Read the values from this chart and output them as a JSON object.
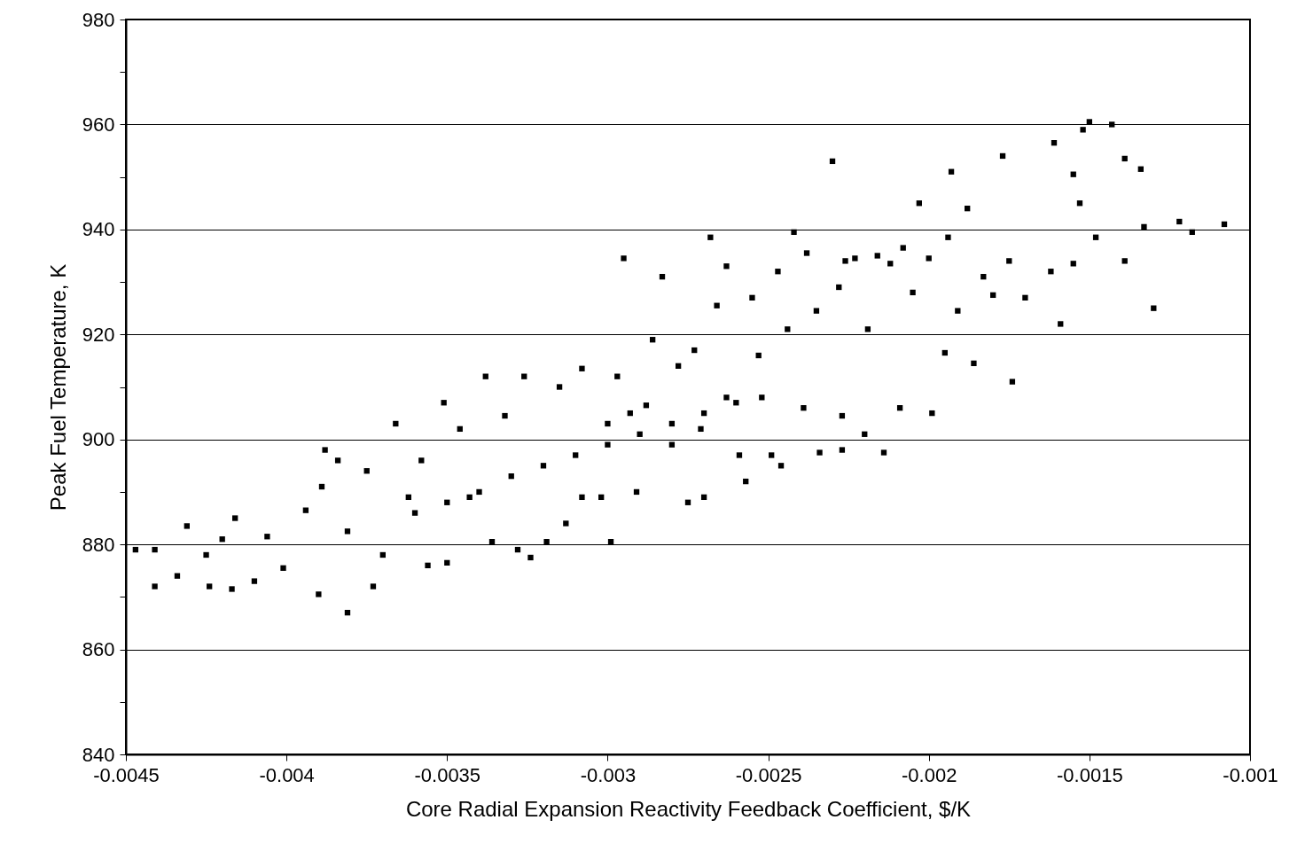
{
  "chart_data": {
    "type": "scatter",
    "xlabel": "Core Radial Expansion Reactivity Feedback Coefficient, $/K",
    "ylabel": "Peak Fuel Temperature, K",
    "marker": "square",
    "grid": "y",
    "xlim": [
      -0.0045,
      -0.001
    ],
    "xticks": [
      -0.0045,
      -0.004,
      -0.0035,
      -0.003,
      -0.0025,
      -0.002,
      -0.0015,
      -0.001
    ],
    "ylim": [
      840,
      980
    ],
    "yticks": [
      840,
      {
        "value": 850,
        "label": null
      },
      860,
      {
        "value": 870,
        "label": null
      },
      880,
      {
        "value": 890,
        "label": null
      },
      900,
      {
        "value": 910,
        "label": null
      },
      920,
      {
        "value": 930,
        "label": null
      },
      940,
      {
        "value": 950,
        "label": null
      },
      960,
      {
        "value": 970,
        "label": null
      },
      980
    ],
    "series": [
      {
        "color": "#000000",
        "x": [
          -0.00447,
          -0.00441,
          -0.00441,
          -0.00434,
          -0.00431,
          -0.00425,
          -0.00424,
          -0.0042,
          -0.00417,
          -0.00416,
          -0.0041,
          -0.00406,
          -0.00401,
          -0.00394,
          -0.0039,
          -0.00389,
          -0.00388,
          -0.00384,
          -0.00381,
          -0.00381,
          -0.00375,
          -0.00373,
          -0.0037,
          -0.00366,
          -0.00362,
          -0.00358,
          -0.00356,
          -0.00351,
          -0.0035,
          -0.00346,
          -0.00343,
          -0.00338,
          -0.00336,
          -0.00332,
          -0.00328,
          -0.00326,
          -0.00324,
          -0.00319,
          -0.00315,
          -0.00313,
          -0.00308,
          -0.00308,
          -0.00302,
          -0.00299,
          -0.003,
          -0.00297,
          -0.00295,
          -0.00293,
          -0.00291,
          -0.00288,
          -0.00286,
          -0.00283,
          -0.0028,
          -0.00278,
          -0.00275,
          -0.00273,
          -0.00271,
          -0.0027,
          -0.00268,
          -0.00266,
          -0.00263,
          -0.00263,
          -0.00259,
          -0.00257,
          -0.00255,
          -0.00253,
          -0.00252,
          -0.00249,
          -0.00247,
          -0.00246,
          -0.00244,
          -0.00242,
          -0.00239,
          -0.00238,
          -0.00235,
          -0.00234,
          -0.0023,
          -0.00228,
          -0.00227,
          -0.00227,
          -0.00226,
          -0.00223,
          -0.0022,
          -0.00219,
          -0.00216,
          -0.00214,
          -0.00212,
          -0.00209,
          -0.00208,
          -0.00205,
          -0.00203,
          -0.002,
          -0.00199,
          -0.00195,
          -0.00193,
          -0.00194,
          -0.00191,
          -0.00188,
          -0.00186,
          -0.00183,
          -0.0018,
          -0.00177,
          -0.00175,
          -0.00174,
          -0.0017,
          -0.00162,
          -0.00161,
          -0.00159,
          -0.00155,
          -0.00155,
          -0.00153,
          -0.00152,
          -0.0015,
          -0.00148,
          -0.00143,
          -0.00139,
          -0.00139,
          -0.00134,
          -0.00133,
          -0.0013,
          -0.00122,
          -0.00118,
          -0.00108,
          -0.0034,
          -0.0033,
          -0.0032,
          -0.0031,
          -0.003,
          -0.0029,
          -0.0028,
          -0.0027,
          -0.0026,
          -0.0036,
          -0.0035
        ],
        "values": [
          879,
          879,
          872,
          874,
          883.5,
          878,
          872,
          881,
          871.5,
          885,
          873,
          881.5,
          875.5,
          886.5,
          870.5,
          891,
          898,
          896,
          867,
          882.5,
          894,
          872,
          878,
          903,
          889,
          896,
          876,
          907,
          876.5,
          902,
          889,
          912,
          880.5,
          904.5,
          879,
          912,
          877.5,
          880.5,
          910,
          884,
          889,
          913.5,
          889,
          880.5,
          903,
          912,
          934.5,
          905,
          890,
          906.5,
          919,
          931,
          899,
          914,
          888,
          917,
          902,
          889,
          938.5,
          925.5,
          933,
          908,
          897,
          892,
          927,
          916,
          908,
          897,
          932,
          895,
          921,
          939.5,
          906,
          935.5,
          924.5,
          897.5,
          953,
          929,
          904.5,
          898,
          934,
          934.5,
          901,
          921,
          935,
          897.5,
          933.5,
          906,
          936.5,
          928,
          945,
          934.5,
          905,
          916.5,
          951,
          938.5,
          924.5,
          944,
          914.5,
          931,
          927.5,
          954,
          934,
          911,
          927,
          932,
          956.5,
          922,
          950.5,
          933.5,
          945,
          959,
          960.5,
          938.5,
          960,
          953.5,
          934,
          951.5,
          940.5,
          925,
          941.5,
          939.5,
          941,
          890,
          893,
          895,
          897,
          899,
          901,
          903,
          905,
          907,
          886,
          888
        ]
      }
    ]
  }
}
